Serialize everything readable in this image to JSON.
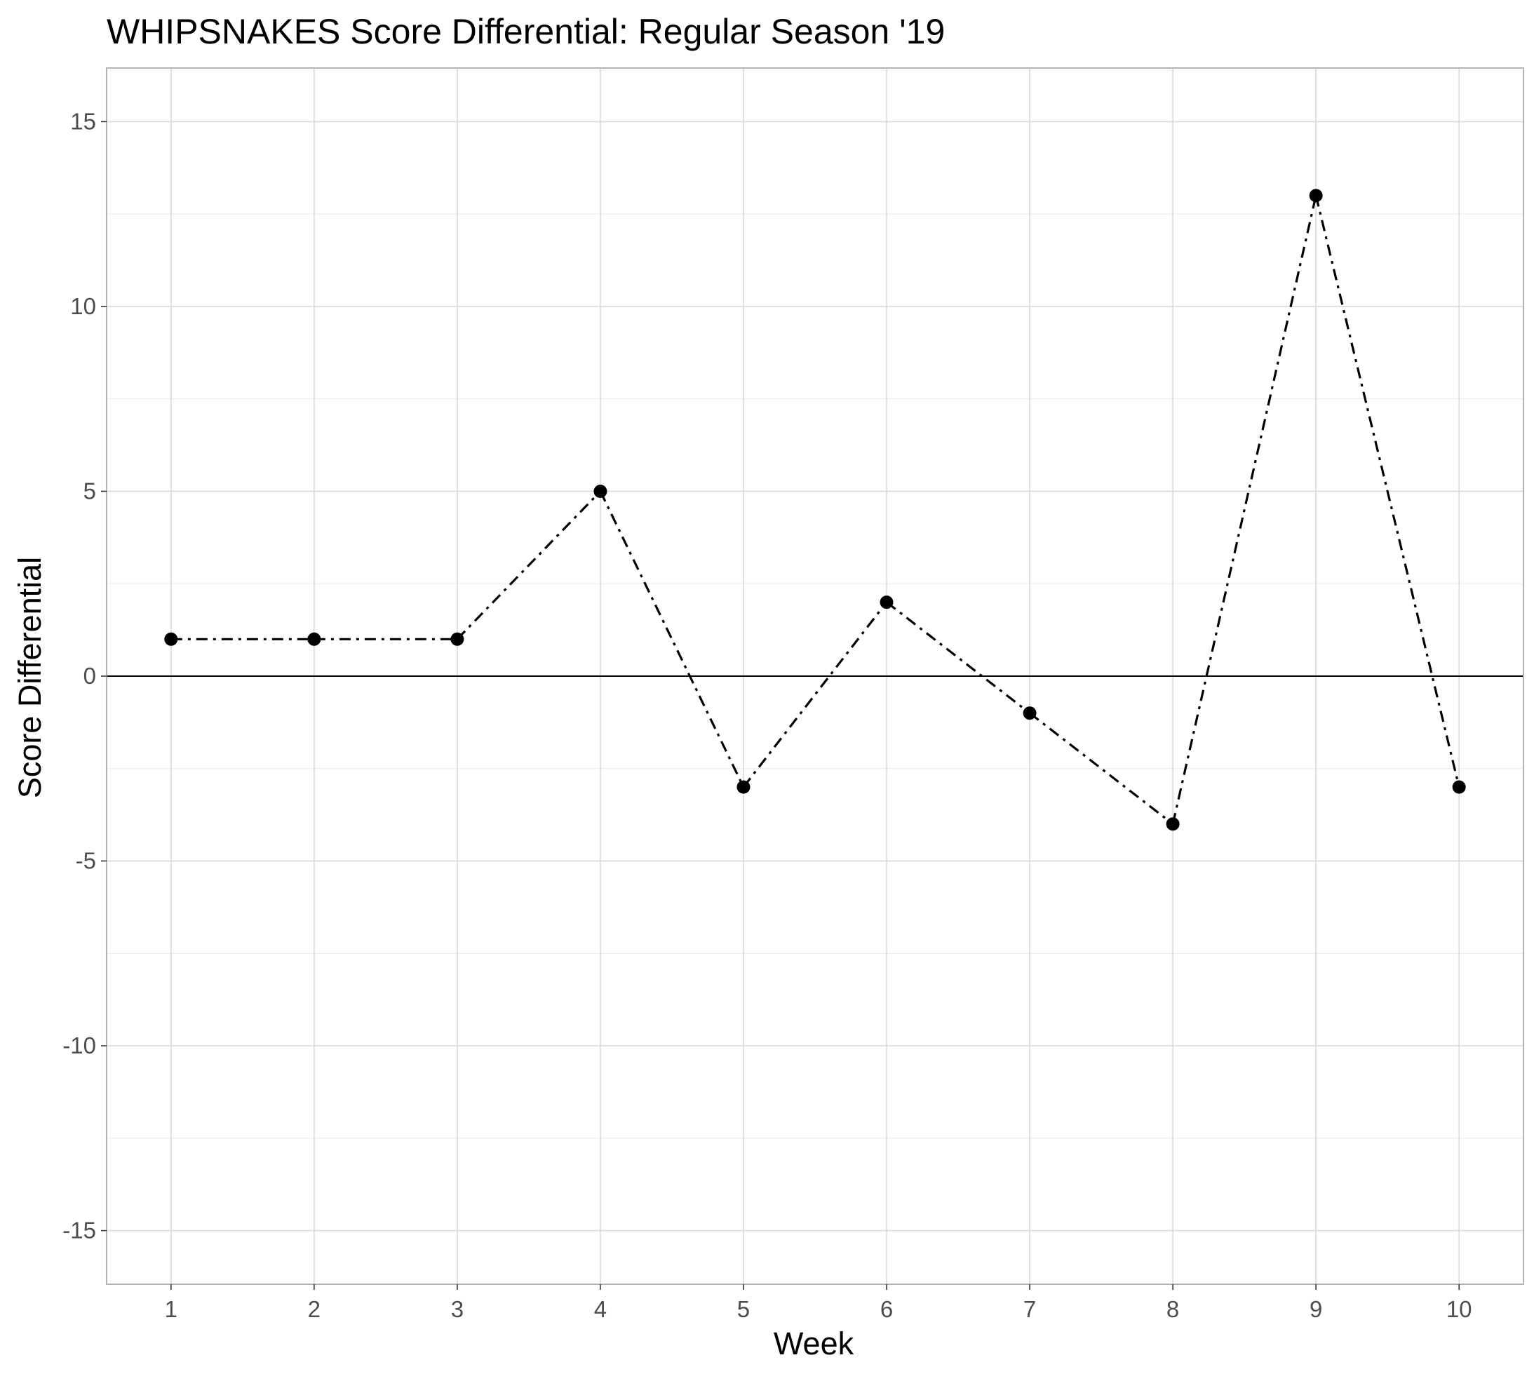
{
  "chart_data": {
    "type": "line",
    "title": "WHIPSNAKES Score Differential: Regular Season '19",
    "xlabel": "Week",
    "ylabel": "Score Differential",
    "x": [
      1,
      2,
      3,
      4,
      5,
      6,
      7,
      8,
      9,
      10
    ],
    "x_tick_labels": [
      "1",
      "2",
      "3",
      "4",
      "5",
      "6",
      "7",
      "8",
      "9",
      "10"
    ],
    "series": [
      {
        "values": [
          1,
          1,
          1,
          5,
          -3,
          2,
          -1,
          -4,
          13,
          -3
        ],
        "color": "#000000",
        "line_style": "dashdot",
        "marker": "circle"
      }
    ],
    "y_ticks": [
      -15,
      -10,
      -5,
      0,
      5,
      10,
      15
    ],
    "y_tick_labels": [
      "-15",
      "-10",
      "-5",
      "0",
      "5",
      "10",
      "15"
    ],
    "xlim": [
      0.55,
      10.45
    ],
    "ylim": [
      -16.45,
      16.45
    ],
    "reference_line": {
      "y": 0,
      "color": "#000000"
    },
    "grid": true,
    "legend": "none",
    "colors": {
      "background": "#ffffff",
      "grid_major": "#d9d9d9",
      "grid_minor": "#ebebeb",
      "panel_border": "#b3b3b3",
      "tick_text": "#4d4d4d",
      "text": "#000000"
    }
  }
}
